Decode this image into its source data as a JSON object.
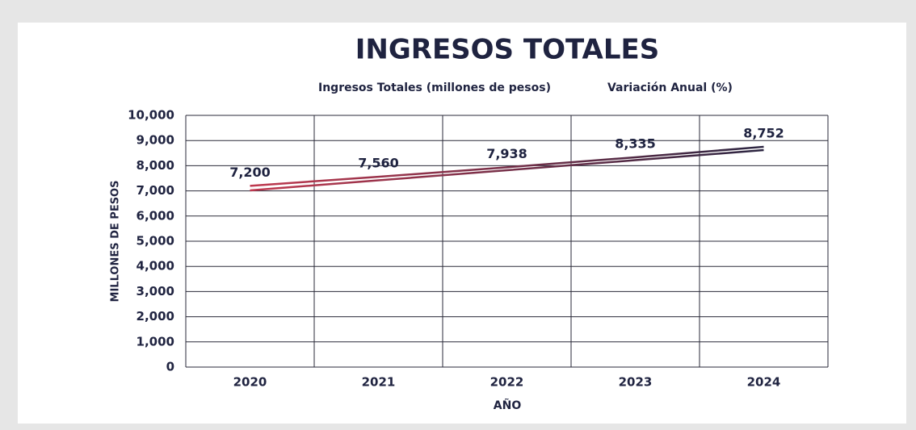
{
  "chart_data": {
    "type": "line",
    "title": "INGRESOS TOTALES",
    "x_label": "AÑO",
    "y_label": "MILLONES DE PESOS",
    "categories": [
      "2020",
      "2021",
      "2022",
      "2023",
      "2024"
    ],
    "series": [
      {
        "name": "Ingresos Totales (millones de pesos)",
        "color": [
          "#c0394f",
          "#2b2541"
        ],
        "values": [
          7200,
          7560,
          7938,
          8335,
          8752
        ],
        "value_labels": [
          "7,200",
          "7,560",
          "7,938",
          "8,335",
          "8,752"
        ]
      },
      {
        "name": "Variación Anual (%)",
        "color": [
          "#c0394f",
          "#2b2541"
        ],
        "values": [
          7020,
          7420,
          7820,
          8220,
          8620
        ]
      }
    ],
    "ylim": [
      0,
      10000
    ],
    "yticks": [
      0,
      {
        "value": 1000,
        "label": "1,000"
      },
      {
        "value": 2000,
        "label": "2,000"
      },
      {
        "value": 3000,
        "label": "3,000"
      },
      {
        "value": 4000,
        "label": "4,000"
      },
      {
        "value": 5000,
        "label": "5,000"
      },
      {
        "value": 6000,
        "label": "6,000"
      },
      {
        "value": 7000,
        "label": "7,000"
      },
      {
        "value": 8000,
        "label": "8,000"
      },
      {
        "value": 9000,
        "label": "9,000"
      },
      {
        "value": 10000,
        "label": "10,000"
      }
    ],
    "grid": true
  }
}
